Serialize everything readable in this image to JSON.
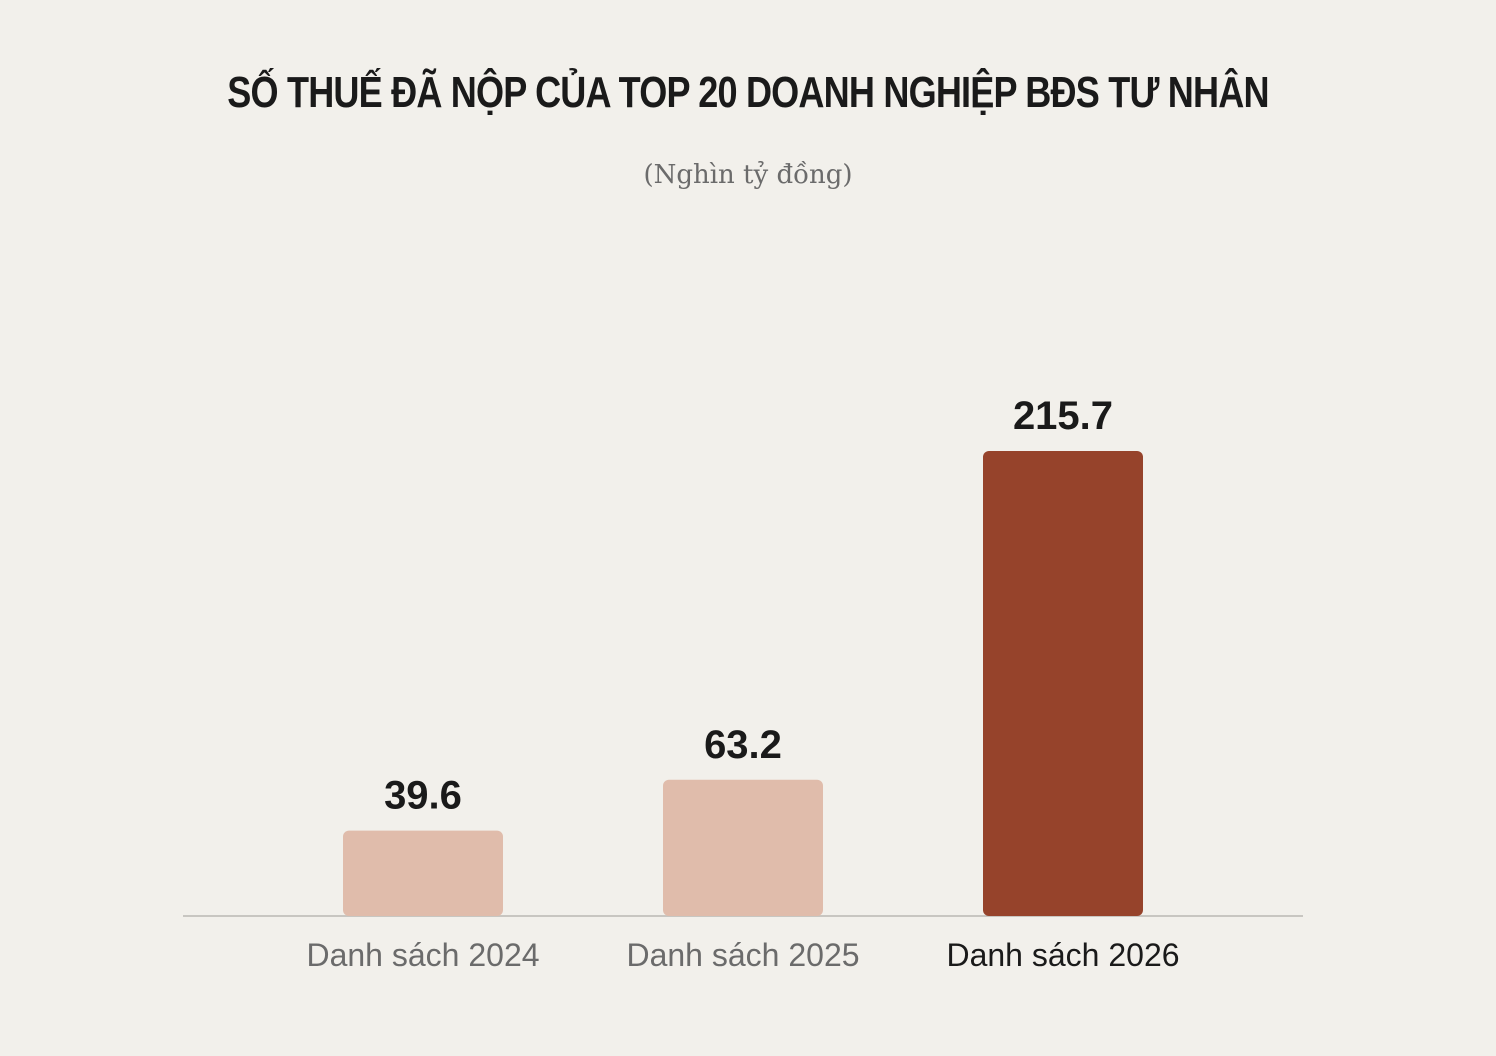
{
  "chart_data": {
    "type": "bar",
    "title": "SỐ THUẾ ĐÃ NỘP CỦA TOP 20 DOANH NGHIỆP BĐS TƯ NHÂN",
    "subtitle": "(Nghìn tỷ đồng)",
    "categories": [
      "Danh sách 2024",
      "Danh sách 2025",
      "Danh sách 2026"
    ],
    "values": [
      39.6,
      63.2,
      215.7
    ],
    "value_labels": [
      "39.6",
      "63.2",
      "215.7"
    ],
    "bar_colors": [
      "#e0bcab",
      "#e0bcab",
      "#96432b"
    ],
    "category_label_colors": [
      "#6b6b6b",
      "#6b6b6b",
      "#1a1a1a"
    ],
    "ylim": [
      0,
      215.7
    ],
    "grid": false
  },
  "colors": {
    "background": "#f2f0eb",
    "baseline": "#c8c6c1"
  }
}
